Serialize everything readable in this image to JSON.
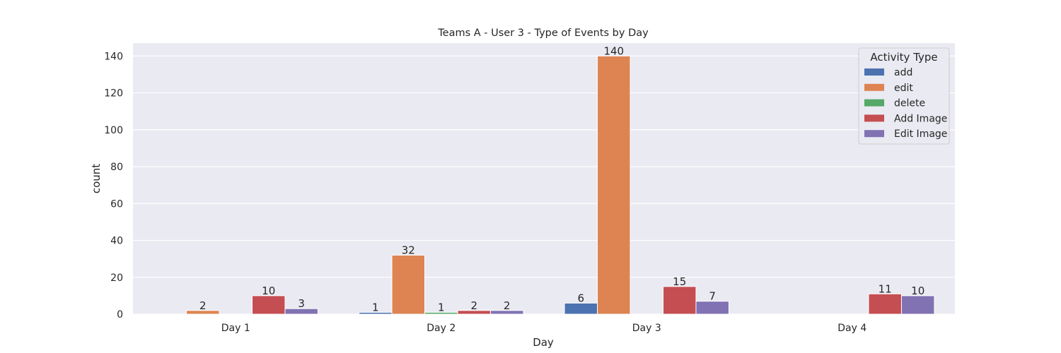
{
  "chart_data": {
    "type": "bar",
    "title": "Teams A - User 3 - Type of Events by Day",
    "xlabel": "Day",
    "ylabel": "count",
    "categories": [
      "Day 1",
      "Day 2",
      "Day 3",
      "Day 4"
    ],
    "ylim": [
      0,
      147
    ],
    "yticks": [
      0,
      20,
      40,
      60,
      80,
      100,
      120,
      140
    ],
    "grid": true,
    "legend": {
      "title": "Activity Type",
      "placement": "top-right"
    },
    "series": [
      {
        "name": "add",
        "color": "#4c72b0",
        "values": [
          null,
          1,
          6,
          null
        ],
        "labels": [
          "",
          "1",
          "6",
          ""
        ]
      },
      {
        "name": "edit",
        "color": "#dd8452",
        "values": [
          2,
          32,
          140,
          null
        ],
        "labels": [
          "2",
          "32",
          "140",
          ""
        ]
      },
      {
        "name": "delete",
        "color": "#55a868",
        "values": [
          null,
          1,
          null,
          null
        ],
        "labels": [
          "",
          "1",
          "",
          ""
        ]
      },
      {
        "name": "Add Image",
        "color": "#c44e52",
        "values": [
          10,
          2,
          15,
          11
        ],
        "labels": [
          "10",
          "2",
          "15",
          "11"
        ]
      },
      {
        "name": "Edit Image",
        "color": "#8172b3",
        "values": [
          3,
          2,
          7,
          10
        ],
        "labels": [
          "3",
          "2",
          "7",
          "10"
        ]
      }
    ]
  }
}
